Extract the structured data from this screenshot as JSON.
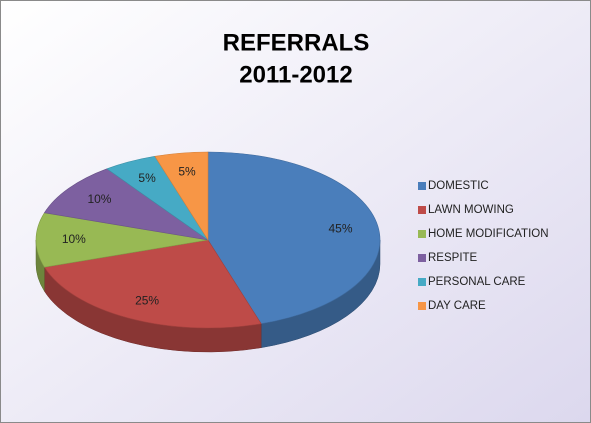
{
  "chart_data": {
    "type": "pie",
    "title": [
      "REFERRALS",
      "2011-2012"
    ],
    "categories": [
      "DOMESTIC",
      "LAWN MOWING",
      "HOME MODIFICATION",
      "RESPITE",
      "PERSONAL CARE",
      "DAY CARE"
    ],
    "values": [
      45,
      25,
      10,
      10,
      5,
      5
    ],
    "value_labels": [
      "45%",
      "25%",
      "10%",
      "10%",
      "5%",
      "5%"
    ],
    "colors": [
      "#4a7ebb",
      "#be4b48",
      "#98b954",
      "#7d60a0",
      "#46aac5",
      "#f79646"
    ],
    "legend": "right"
  }
}
